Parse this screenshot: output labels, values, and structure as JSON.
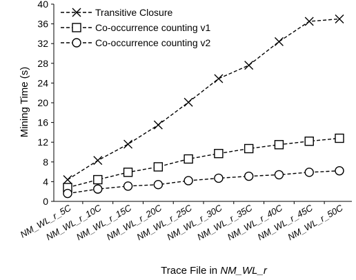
{
  "chart_data": {
    "type": "line",
    "xlabel": {
      "prefix": "Trace File in ",
      "italic": "NM_WL_r"
    },
    "ylabel": "Mining Time (s)",
    "ylim": [
      0,
      40
    ],
    "yticks": [
      0,
      4,
      8,
      12,
      16,
      20,
      24,
      28,
      32,
      36,
      40
    ],
    "grid": false,
    "legend_position": "top-left",
    "categories": [
      "NM_WL_r_5C",
      "NM_WL_r_10C",
      "NM_WL_r_15C",
      "NM_WL_r_20C",
      "NM_WL_r_25C",
      "NM_WL_r_30C",
      "NM_WL_r_35C",
      "NM_WL_r_40C",
      "NM_WL_r_45C",
      "NM_WL_r_50C"
    ],
    "series": [
      {
        "name": "Transitive Closure",
        "marker": "x",
        "values": [
          4.4,
          8.3,
          11.6,
          15.5,
          20.1,
          24.9,
          27.6,
          32.4,
          36.5,
          37.0
        ]
      },
      {
        "name": "Co-occurrence counting v1",
        "marker": "square",
        "values": [
          2.8,
          4.4,
          5.9,
          7.0,
          8.6,
          9.7,
          10.7,
          11.5,
          12.2,
          12.8
        ]
      },
      {
        "name": "Co-occurrence counting v2",
        "marker": "circle",
        "values": [
          1.6,
          2.5,
          3.1,
          3.4,
          4.2,
          4.7,
          5.1,
          5.4,
          5.9,
          6.2
        ]
      }
    ],
    "line_color": "#000000"
  }
}
